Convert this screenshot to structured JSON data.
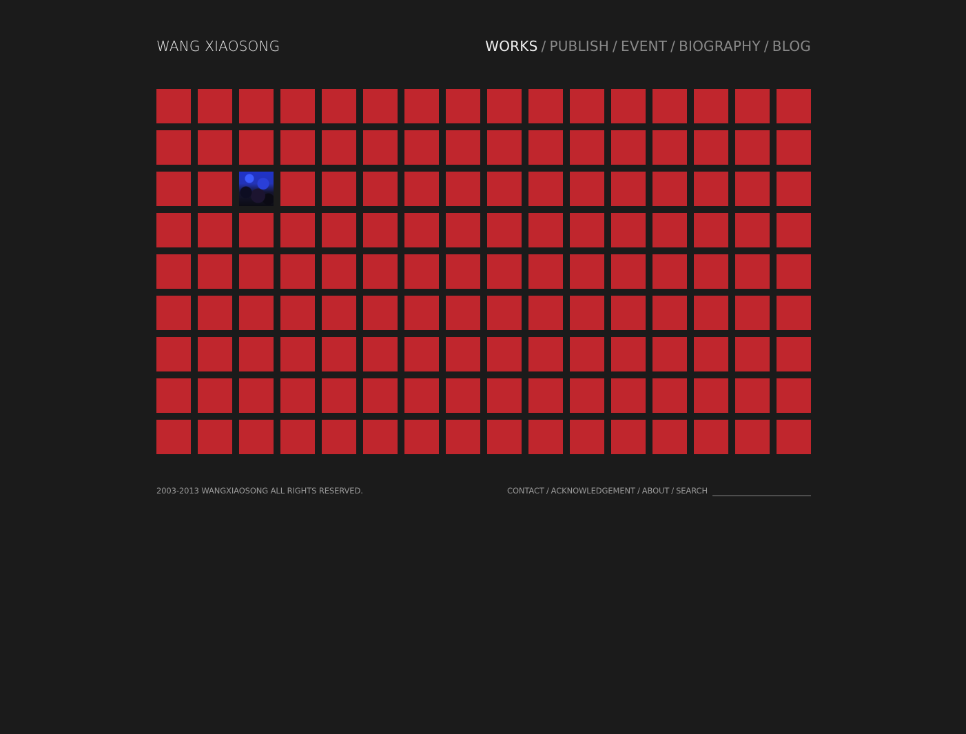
{
  "header": {
    "site_title": "WANG XIAOSONG",
    "nav": [
      {
        "label": "WORKS",
        "active": true
      },
      {
        "label": "PUBLISH",
        "active": false
      },
      {
        "label": "EVENT",
        "active": false
      },
      {
        "label": "BIOGRAPHY",
        "active": false
      },
      {
        "label": "BLOG",
        "active": false
      }
    ],
    "separator": "/"
  },
  "grid": {
    "rows": 9,
    "columns": 16,
    "tile_color": "#c0262d",
    "highlighted_tile": {
      "row": 3,
      "column": 3,
      "content": "blue and dark painting thumbnail"
    }
  },
  "footer": {
    "copyright": "2003-2013 WANGXIAOSONG ALL RIGHTS RESERVED.",
    "links": [
      "CONTACT",
      "ACKNOWLEDGEMENT",
      "ABOUT",
      "SEARCH"
    ],
    "separator": "/",
    "search_value": ""
  },
  "colors": {
    "background": "#1b1b1b",
    "accent_red": "#c0262d",
    "nav_active": "#f0f0f0",
    "nav_inactive": "#8a8a8a"
  }
}
